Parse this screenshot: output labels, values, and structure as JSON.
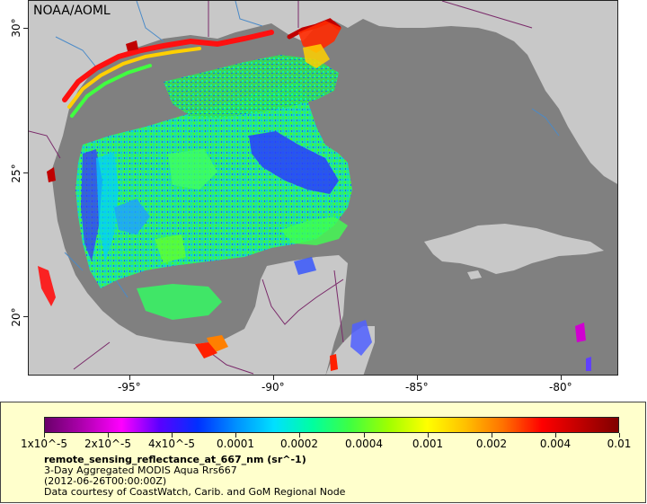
{
  "credit": "NOAA/AOML",
  "lat_labels": [
    "30°",
    "25°",
    "20°"
  ],
  "lon_labels": [
    "-95°",
    "-90°",
    "-85°",
    "-80°"
  ],
  "colorbar": {
    "labels": [
      "1x10^-5",
      "2x10^-5",
      "4x10^-5",
      "0.0001",
      "0.0002",
      "0.0004",
      "0.001",
      "0.002",
      "0.004",
      "0.01"
    ],
    "colors": [
      "#6a006a",
      "#b000b0",
      "#ff00ff",
      "#5a00ff",
      "#0030ff",
      "#0090ff",
      "#00e0ff",
      "#00ffa0",
      "#40ff40",
      "#a0ff00",
      "#ffff00",
      "#ffc000",
      "#ff7000",
      "#ff0000",
      "#c00000",
      "#800000"
    ]
  },
  "legend": {
    "variable": "remote_sensing_reflectance_at_667_nm (sr^-1)",
    "line1": "3-Day Aggregated MODIS Aqua Rrs667",
    "line2": "(2012-06-26T00:00:00Z)",
    "line3": "Data courtesy of CoastWatch, Carib. and GoM Regional Node"
  },
  "colors": {
    "land": "#c8c8c8",
    "nodata": "#808080",
    "legend_bg": "#ffffcc"
  }
}
